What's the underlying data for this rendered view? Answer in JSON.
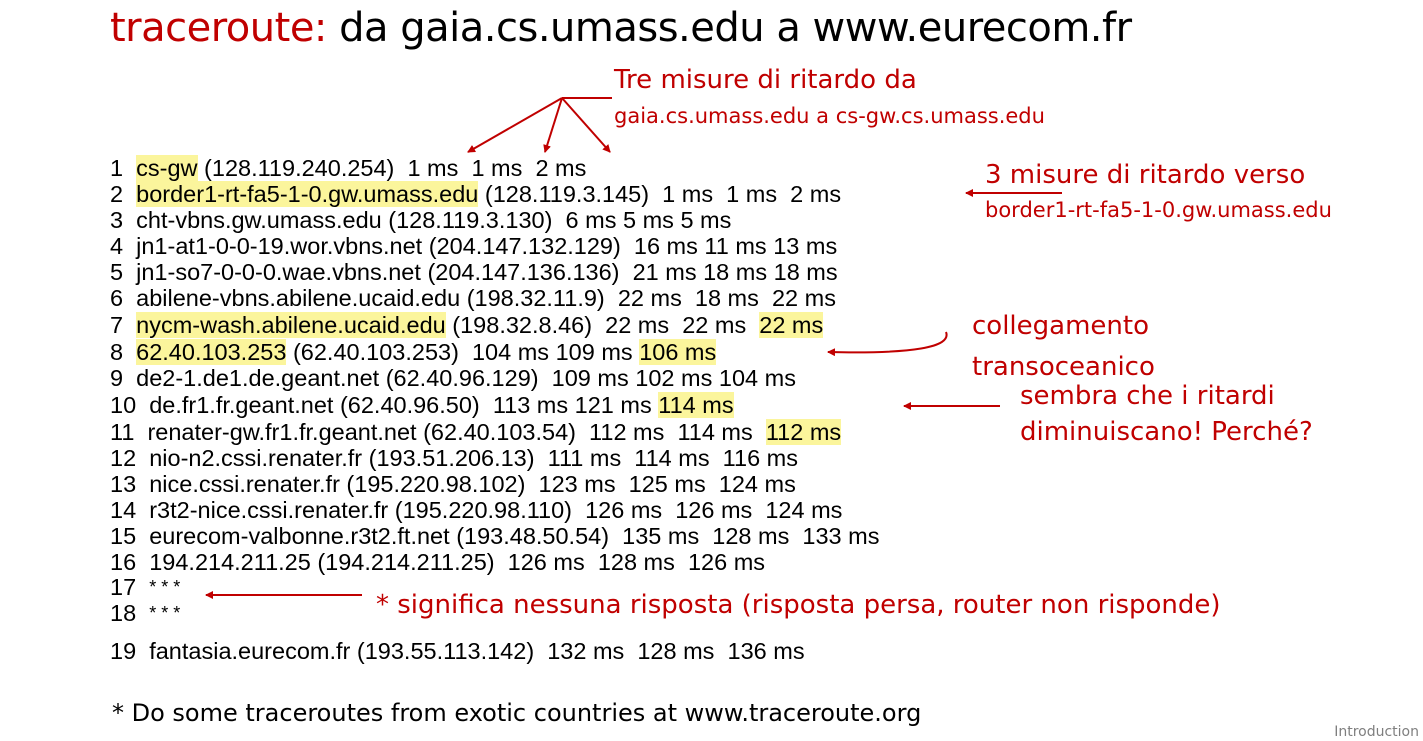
{
  "title": {
    "accent": "traceroute:",
    "rest": "da gaia.cs.umass.edu a www.eurecom.fr"
  },
  "hops": [
    {
      "n": "1",
      "host": "cs-gw",
      "ip": "(128.119.240.254)",
      "t1": "1 ms",
      "t2": "1 ms",
      "t3": "2 ms"
    },
    {
      "n": "2",
      "host": "border1-rt-fa5-1-0.gw.umass.edu",
      "ip": "(128.119.3.145)",
      "t1": "1 ms",
      "t2": "1 ms",
      "t3": "2 ms"
    },
    {
      "n": "3",
      "host": "cht-vbns.gw.umass.edu",
      "ip": "(128.119.3.130)",
      "t1": "6 ms",
      "t2": "5 ms",
      "t3": "5 ms"
    },
    {
      "n": "4",
      "host": "jn1-at1-0-0-19.wor.vbns.net",
      "ip": "(204.147.132.129)",
      "t1": "16 ms",
      "t2": "11 ms",
      "t3": "13 ms"
    },
    {
      "n": "5",
      "host": "jn1-so7-0-0-0.wae.vbns.net",
      "ip": "(204.147.136.136)",
      "t1": "21 ms",
      "t2": "18 ms",
      "t3": "18 ms"
    },
    {
      "n": "6",
      "host": "abilene-vbns.abilene.ucaid.edu",
      "ip": "(198.32.11.9)",
      "t1": "22 ms",
      "t2": "18 ms",
      "t3": "22 ms"
    },
    {
      "n": "7",
      "host": "nycm-wash.abilene.ucaid.edu",
      "ip": "(198.32.8.46)",
      "t1": "22 ms",
      "t2": "22 ms",
      "t3": "22 ms"
    },
    {
      "n": "8",
      "host": "62.40.103.253",
      "ip": "(62.40.103.253)",
      "t1": "104 ms",
      "t2": "109 ms",
      "t3": "106 ms"
    },
    {
      "n": "9",
      "host": "de2-1.de1.de.geant.net",
      "ip": "(62.40.96.129)",
      "t1": "109 ms",
      "t2": "102 ms",
      "t3": "104 ms"
    },
    {
      "n": "10",
      "host": "de.fr1.fr.geant.net",
      "ip": "(62.40.96.50)",
      "t1": "113 ms",
      "t2": "121 ms",
      "t3": "114 ms"
    },
    {
      "n": "11",
      "host": "renater-gw.fr1.fr.geant.net",
      "ip": "(62.40.103.54)",
      "t1": "112 ms",
      "t2": "114 ms",
      "t3": "112 ms"
    },
    {
      "n": "12",
      "host": "nio-n2.cssi.renater.fr",
      "ip": "(193.51.206.13)",
      "t1": "111 ms",
      "t2": "114 ms",
      "t3": "116 ms"
    },
    {
      "n": "13",
      "host": "nice.cssi.renater.fr",
      "ip": "(195.220.98.102)",
      "t1": "123 ms",
      "t2": "125 ms",
      "t3": "124 ms"
    },
    {
      "n": "14",
      "host": "r3t2-nice.cssi.renater.fr",
      "ip": "(195.220.98.110)",
      "t1": "126 ms",
      "t2": "126 ms",
      "t3": "124 ms"
    },
    {
      "n": "15",
      "host": "eurecom-valbonne.r3t2.ft.net",
      "ip": "(193.48.50.54)",
      "t1": "135 ms",
      "t2": "128 ms",
      "t3": "133 ms"
    },
    {
      "n": "16",
      "host": "194.214.211.25",
      "ip": "(194.214.211.25)",
      "t1": "126 ms",
      "t2": "128 ms",
      "t3": "126 ms"
    },
    {
      "n": "17",
      "stars": "* * *"
    },
    {
      "n": "18",
      "stars": "* * *"
    },
    {
      "n": "19",
      "host": "fantasia.eurecom.fr",
      "ip": "(193.55.113.142)",
      "t1": "132 ms",
      "t2": "128 ms",
      "t3": "136 ms"
    }
  ],
  "annotations": {
    "tre_misure_1": "Tre misure di ritardo da",
    "tre_misure_2": "gaia.cs.umass.edu a cs-gw.cs.umass.edu",
    "three_measures_1": "3 misure di ritardo verso",
    "three_measures_2": "border1-rt-fa5-1-0.gw.umass.edu",
    "transoceanic_1": "collegamento",
    "transoceanic_2": "transoceanico",
    "decrease_1": "sembra che i ritardi",
    "decrease_2": "diminuiscano! Perché?",
    "no_response": "* significa nessuna risposta (risposta persa, router non risponde)"
  },
  "footnote": "* Do some traceroutes from exotic countries at www.traceroute.org",
  "footer": "Introduction",
  "colors": {
    "accent": "#c00000",
    "highlight": "#fbf59c"
  }
}
